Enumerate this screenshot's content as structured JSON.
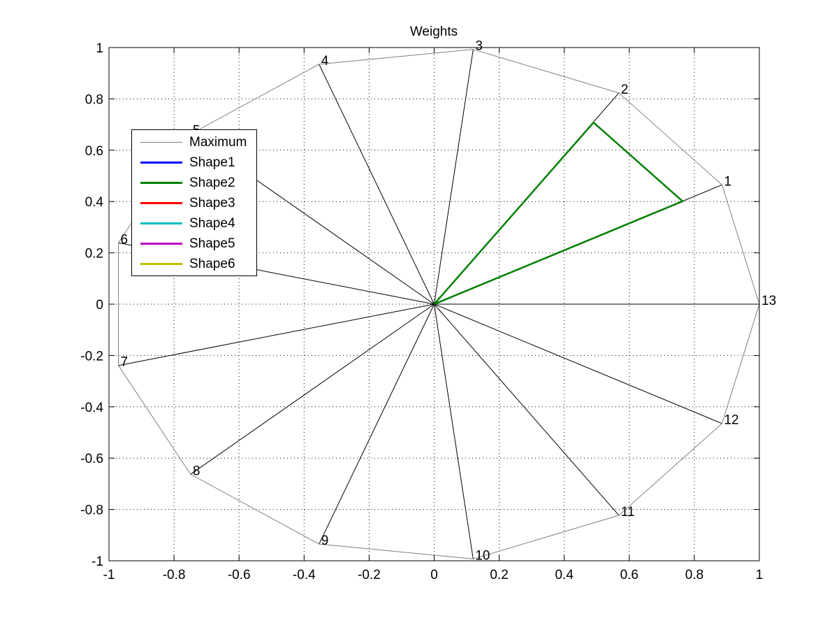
{
  "chart_data": {
    "type": "line",
    "title": "Weights",
    "xlabel": "",
    "ylabel": "",
    "xlim": [
      -1,
      1
    ],
    "ylim": [
      -1,
      1
    ],
    "grid": true,
    "x_ticks": [
      -1,
      -0.8,
      -0.6,
      -0.4,
      -0.2,
      0,
      0.2,
      0.4,
      0.6,
      0.8,
      1
    ],
    "y_ticks": [
      -1,
      -0.8,
      -0.6,
      -0.4,
      -0.2,
      0,
      0.2,
      0.4,
      0.6,
      0.8,
      1
    ],
    "x_tick_labels": [
      "-1",
      "-0.8",
      "-0.6",
      "-0.4",
      "-0.2",
      "0",
      "0.2",
      "0.4",
      "0.6",
      "0.8",
      "1"
    ],
    "y_tick_labels": [
      "-1",
      "-0.8",
      "-0.6",
      "-0.4",
      "-0.2",
      "0",
      "0.2",
      "0.4",
      "0.6",
      "0.8",
      "1"
    ],
    "spokes": [
      {
        "label": "1",
        "x": 0.885,
        "y": 0.465
      },
      {
        "label": "2",
        "x": 0.568,
        "y": 0.823
      },
      {
        "label": "3",
        "x": 0.12,
        "y": 0.993
      },
      {
        "label": "4",
        "x": -0.354,
        "y": 0.935
      },
      {
        "label": "5",
        "x": -0.749,
        "y": 0.663
      },
      {
        "label": "6",
        "x": -0.971,
        "y": 0.239
      },
      {
        "label": "7",
        "x": -0.971,
        "y": -0.239
      },
      {
        "label": "8",
        "x": -0.749,
        "y": -0.663
      },
      {
        "label": "9",
        "x": -0.354,
        "y": -0.935
      },
      {
        "label": "10",
        "x": 0.12,
        "y": -0.993
      },
      {
        "label": "11",
        "x": 0.568,
        "y": -0.823
      },
      {
        "label": "12",
        "x": 0.885,
        "y": -0.465
      },
      {
        "label": "13",
        "x": 1.0,
        "y": 0.0
      }
    ],
    "series": [
      {
        "name": "Maximum",
        "color": "#808080",
        "x": [
          0.885,
          0.568,
          0.12,
          -0.354,
          -0.749,
          -0.971,
          -0.971,
          -0.749,
          -0.354,
          0.12,
          0.568,
          0.885,
          1.0,
          0.885
        ],
        "y": [
          0.465,
          0.823,
          0.993,
          0.935,
          0.663,
          0.239,
          -0.239,
          -0.663,
          -0.935,
          -0.993,
          -0.823,
          -0.465,
          0.0,
          0.465
        ]
      },
      {
        "name": "Shape1",
        "color": "#0000ff",
        "x": [],
        "y": []
      },
      {
        "name": "Shape2",
        "color": "#008000",
        "x": [
          0.0,
          0.764,
          0.49,
          0.0
        ],
        "y": [
          0.0,
          0.401,
          0.708,
          0.0
        ]
      },
      {
        "name": "Shape3",
        "color": "#ff0000",
        "x": [],
        "y": []
      },
      {
        "name": "Shape4",
        "color": "#00bfbf",
        "x": [],
        "y": []
      },
      {
        "name": "Shape5",
        "color": "#bf00bf",
        "x": [],
        "y": []
      },
      {
        "name": "Shape6",
        "color": "#bfbf00",
        "x": [],
        "y": []
      }
    ],
    "legend_position": "upper-left"
  }
}
